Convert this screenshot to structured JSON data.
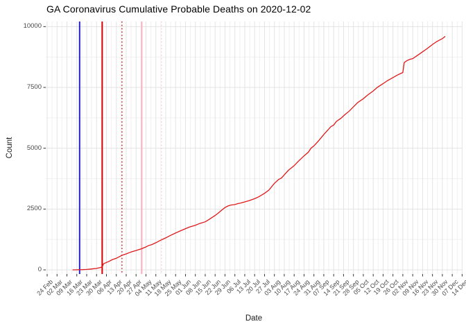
{
  "title": "GA Coronavirus Cumulative Probable Deaths on 2020-12-02",
  "chart_data": {
    "type": "line",
    "title": "GA Coronavirus Cumulative Probable Deaths on 2020-12-02",
    "xlabel": "Date",
    "ylabel": "Count",
    "ylim": [
      0,
      10000
    ],
    "x_range": [
      "2020-02-24",
      "2020-12-14"
    ],
    "grid": "on",
    "legend": "none",
    "x_tick_labels": [
      "24 Feb",
      "02 Mar",
      "09 Mar",
      "16 Mar",
      "23 Mar",
      "30 Mar",
      "06 Apr",
      "13 Apr",
      "20 Apr",
      "27 Apr",
      "04 May",
      "11 May",
      "18 May",
      "25 May",
      "01 Jun",
      "08 Jun",
      "15 Jun",
      "22 Jun",
      "29 Jun",
      "06 Jul",
      "13 Jul",
      "20 Jul",
      "27 Jul",
      "03 Aug",
      "10 Aug",
      "17 Aug",
      "24 Aug",
      "31 Aug",
      "07 Sep",
      "14 Sep",
      "21 Sep",
      "28 Sep",
      "05 Oct",
      "12 Oct",
      "19 Oct",
      "26 Oct",
      "02 Nov",
      "09 Nov",
      "16 Nov",
      "23 Nov",
      "30 Nov",
      "07 Dec",
      "14 Dec"
    ],
    "y_tick_labels": [
      "0",
      "2500",
      "5000",
      "7500",
      "10000"
    ],
    "y_tick_values": [
      0,
      2500,
      5000,
      7500,
      10000
    ],
    "y_minor_values": [
      1250,
      3750,
      6250,
      8750
    ],
    "colors": {
      "line": "#e01818",
      "grid_major": "#e3e3e3",
      "grid_minor": "#f0f0f0",
      "tick": "#333333",
      "axis_text": "#4a4a4a"
    },
    "vlines": [
      {
        "name": "blue-event-line",
        "date": "2020-03-18",
        "color": "#2222cc",
        "style": "solid",
        "width": 2
      },
      {
        "name": "red-event-line",
        "date": "2020-04-03",
        "color": "#dd0000",
        "style": "solid",
        "width": 2
      },
      {
        "name": "red-event-lag-line",
        "date": "2020-04-17",
        "color": "#dd0000",
        "style": "dotted",
        "width": 1.4
      },
      {
        "name": "pink-event-line",
        "date": "2020-05-01",
        "color": "#ffaebb",
        "style": "solid",
        "width": 2
      },
      {
        "name": "pink-event-lag-line",
        "date": "2020-05-15",
        "color": "#ffc9d2",
        "style": "dotted",
        "width": 1.4
      }
    ],
    "series": [
      {
        "name": "cumulative probable deaths",
        "color": "#e01818",
        "points": [
          [
            "2020-03-13",
            0
          ],
          [
            "2020-03-16",
            2
          ],
          [
            "2020-03-20",
            8
          ],
          [
            "2020-03-23",
            18
          ],
          [
            "2020-03-26",
            35
          ],
          [
            "2020-03-30",
            60
          ],
          [
            "2020-04-02",
            100
          ],
          [
            "2020-04-03",
            125
          ],
          [
            "2020-04-04",
            250
          ],
          [
            "2020-04-06",
            305
          ],
          [
            "2020-04-08",
            355
          ],
          [
            "2020-04-10",
            415
          ],
          [
            "2020-04-13",
            475
          ],
          [
            "2020-04-15",
            535
          ],
          [
            "2020-04-17",
            600
          ],
          [
            "2020-04-20",
            655
          ],
          [
            "2020-04-22",
            705
          ],
          [
            "2020-04-24",
            745
          ],
          [
            "2020-04-27",
            795
          ],
          [
            "2020-04-29",
            835
          ],
          [
            "2020-05-01",
            870
          ],
          [
            "2020-05-04",
            945
          ],
          [
            "2020-05-06",
            1005
          ],
          [
            "2020-05-08",
            1035
          ],
          [
            "2020-05-11",
            1115
          ],
          [
            "2020-05-14",
            1205
          ],
          [
            "2020-05-18",
            1315
          ],
          [
            "2020-05-21",
            1405
          ],
          [
            "2020-05-25",
            1515
          ],
          [
            "2020-05-28",
            1595
          ],
          [
            "2020-06-01",
            1695
          ],
          [
            "2020-06-04",
            1765
          ],
          [
            "2020-06-08",
            1835
          ],
          [
            "2020-06-11",
            1905
          ],
          [
            "2020-06-15",
            1975
          ],
          [
            "2020-06-18",
            2085
          ],
          [
            "2020-06-22",
            2235
          ],
          [
            "2020-06-24",
            2325
          ],
          [
            "2020-06-26",
            2425
          ],
          [
            "2020-06-29",
            2565
          ],
          [
            "2020-07-01",
            2625
          ],
          [
            "2020-07-03",
            2665
          ],
          [
            "2020-07-06",
            2685
          ],
          [
            "2020-07-08",
            2725
          ],
          [
            "2020-07-10",
            2745
          ],
          [
            "2020-07-13",
            2795
          ],
          [
            "2020-07-16",
            2845
          ],
          [
            "2020-07-20",
            2925
          ],
          [
            "2020-07-23",
            3005
          ],
          [
            "2020-07-27",
            3145
          ],
          [
            "2020-07-30",
            3275
          ],
          [
            "2020-08-03",
            3555
          ],
          [
            "2020-08-06",
            3715
          ],
          [
            "2020-08-08",
            3775
          ],
          [
            "2020-08-10",
            3905
          ],
          [
            "2020-08-13",
            4095
          ],
          [
            "2020-08-17",
            4285
          ],
          [
            "2020-08-20",
            4465
          ],
          [
            "2020-08-24",
            4685
          ],
          [
            "2020-08-27",
            4835
          ],
          [
            "2020-08-29",
            5005
          ],
          [
            "2020-08-31",
            5095
          ],
          [
            "2020-09-03",
            5285
          ],
          [
            "2020-09-07",
            5565
          ],
          [
            "2020-09-10",
            5755
          ],
          [
            "2020-09-12",
            5885
          ],
          [
            "2020-09-14",
            5955
          ],
          [
            "2020-09-16",
            6105
          ],
          [
            "2020-09-19",
            6225
          ],
          [
            "2020-09-22",
            6385
          ],
          [
            "2020-09-25",
            6525
          ],
          [
            "2020-09-28",
            6705
          ],
          [
            "2020-10-01",
            6875
          ],
          [
            "2020-10-05",
            7035
          ],
          [
            "2020-10-08",
            7185
          ],
          [
            "2020-10-12",
            7355
          ],
          [
            "2020-10-15",
            7505
          ],
          [
            "2020-10-19",
            7655
          ],
          [
            "2020-10-22",
            7775
          ],
          [
            "2020-10-26",
            7905
          ],
          [
            "2020-10-29",
            8005
          ],
          [
            "2020-11-02",
            8115
          ],
          [
            "2020-11-03",
            8525
          ],
          [
            "2020-11-05",
            8605
          ],
          [
            "2020-11-07",
            8655
          ],
          [
            "2020-11-09",
            8685
          ],
          [
            "2020-11-12",
            8805
          ],
          [
            "2020-11-16",
            8965
          ],
          [
            "2020-11-19",
            9085
          ],
          [
            "2020-11-23",
            9265
          ],
          [
            "2020-11-26",
            9385
          ],
          [
            "2020-11-30",
            9505
          ],
          [
            "2020-12-02",
            9600
          ]
        ]
      }
    ]
  }
}
